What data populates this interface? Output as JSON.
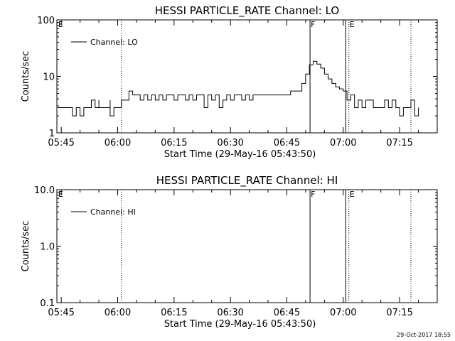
{
  "footer": {
    "stamp": "29-Oct-2017 18:55"
  },
  "chart_data": [
    {
      "type": "line",
      "title": "HESSI PARTICLE_RATE Channel: LO",
      "xlabel": "Start Time (29-May-16 05:43:50)",
      "ylabel": "Counts/sec",
      "yscale": "log",
      "ylim": [
        1,
        100
      ],
      "xlim": [
        "05:43:50",
        "07:25:00"
      ],
      "x_ticks": [
        "05:45",
        "06:00",
        "06:15",
        "06:30",
        "06:45",
        "07:00",
        "07:15"
      ],
      "y_ticks": [
        "1",
        "10",
        "100"
      ],
      "legend": {
        "label": "Channel: LO",
        "placement": "top-left"
      },
      "markers": [
        {
          "time": "06:01:00",
          "label": "",
          "style": "dotted"
        },
        {
          "time": "06:51:10",
          "label": "F",
          "style": "solid"
        },
        {
          "time": "07:00:40",
          "label": "",
          "style": "solid"
        },
        {
          "time": "07:01:30",
          "label": "E",
          "style": "dotted"
        },
        {
          "time": "07:18:00",
          "label": "",
          "style": "dotted"
        }
      ],
      "grid": false,
      "series": [
        {
          "name": "Channel: LO",
          "x": [
            "05:44",
            "05:48",
            "05:48",
            "05:49",
            "05:50",
            "05:51",
            "05:52",
            "05:53",
            "05:53",
            "05:54",
            "05:55",
            "05:55",
            "05:56",
            "05:57",
            "05:58",
            "05:58",
            "05:59",
            "06:00",
            "06:01",
            "06:01",
            "06:02",
            "06:03",
            "06:04",
            "06:05",
            "06:06",
            "06:07",
            "06:08",
            "06:09",
            "06:10",
            "06:11",
            "06:12",
            "06:13",
            "06:14",
            "06:15",
            "06:16",
            "06:17",
            "06:18",
            "06:19",
            "06:20",
            "06:21",
            "06:22",
            "06:23",
            "06:24",
            "06:25",
            "06:26",
            "06:27",
            "06:28",
            "06:29",
            "06:30",
            "06:31",
            "06:32",
            "06:33",
            "06:34",
            "06:35",
            "06:36",
            "06:37",
            "06:38",
            "06:39",
            "06:40",
            "06:41",
            "06:42",
            "06:43",
            "06:44",
            "06:45",
            "06:46",
            "06:47",
            "06:48",
            "06:49",
            "06:50",
            "06:51",
            "06:52",
            "06:53",
            "06:54",
            "06:55",
            "06:56",
            "06:57",
            "06:58",
            "06:59",
            "07:00",
            "07:01",
            "07:02",
            "07:03",
            "07:04",
            "07:05",
            "07:06",
            "07:07",
            "07:08",
            "07:09",
            "07:10",
            "07:11",
            "07:12",
            "07:13",
            "07:14",
            "07:15",
            "07:16",
            "07:17",
            "07:18",
            "07:19",
            "07:20"
          ],
          "values": [
            2.8,
            2.8,
            2,
            2.8,
            2,
            2.8,
            2.8,
            2.8,
            3.8,
            2.8,
            3.8,
            2.8,
            2.8,
            2.8,
            3.8,
            2,
            2.8,
            2.8,
            2.8,
            3.8,
            3.8,
            5.5,
            4.7,
            4.7,
            3.8,
            4.7,
            3.8,
            4.7,
            3.8,
            4.7,
            3.8,
            4.7,
            4.7,
            3.8,
            4.7,
            4.7,
            3.8,
            4.7,
            3.8,
            4.7,
            4.7,
            2.8,
            4.7,
            3.8,
            4.7,
            2.8,
            3.8,
            4.7,
            3.8,
            4.7,
            4.7,
            3.8,
            4.7,
            3.8,
            4.7,
            4.7,
            4.7,
            4.7,
            4.7,
            4.7,
            4.7,
            4.7,
            4.7,
            4.7,
            5.5,
            5.5,
            5.5,
            7.5,
            11,
            16,
            18.5,
            16.5,
            14,
            11,
            9,
            7.5,
            6.5,
            6,
            5.5,
            3.8,
            4.7,
            2.8,
            3.8,
            2.8,
            3.8,
            3.8,
            2.8,
            2.8,
            2.8,
            3.8,
            2.8,
            3.8,
            2.8,
            2,
            2.8,
            2.8,
            3.8,
            2,
            2.8
          ]
        }
      ]
    },
    {
      "type": "line",
      "title": "HESSI PARTICLE_RATE Channel: HI",
      "xlabel": "Start Time (29-May-16 05:43:50)",
      "ylabel": "Counts/sec",
      "yscale": "log",
      "ylim": [
        0.1,
        10
      ],
      "xlim": [
        "05:43:50",
        "07:25:00"
      ],
      "x_ticks": [
        "05:45",
        "06:00",
        "06:15",
        "06:30",
        "06:45",
        "07:00",
        "07:15"
      ],
      "y_ticks": [
        "0.1",
        "1.0",
        "10.0"
      ],
      "legend": {
        "label": "Channel: HI",
        "placement": "top-left"
      },
      "markers": [
        {
          "time": "06:01:00",
          "label": "",
          "style": "dotted"
        },
        {
          "time": "06:51:10",
          "label": "F",
          "style": "solid"
        },
        {
          "time": "07:00:40",
          "label": "",
          "style": "solid"
        },
        {
          "time": "07:01:30",
          "label": "E",
          "style": "dotted"
        },
        {
          "time": "07:18:00",
          "label": "",
          "style": "dotted"
        }
      ],
      "grid": false,
      "series": [
        {
          "name": "Channel: HI",
          "x": [],
          "values": []
        }
      ]
    }
  ]
}
